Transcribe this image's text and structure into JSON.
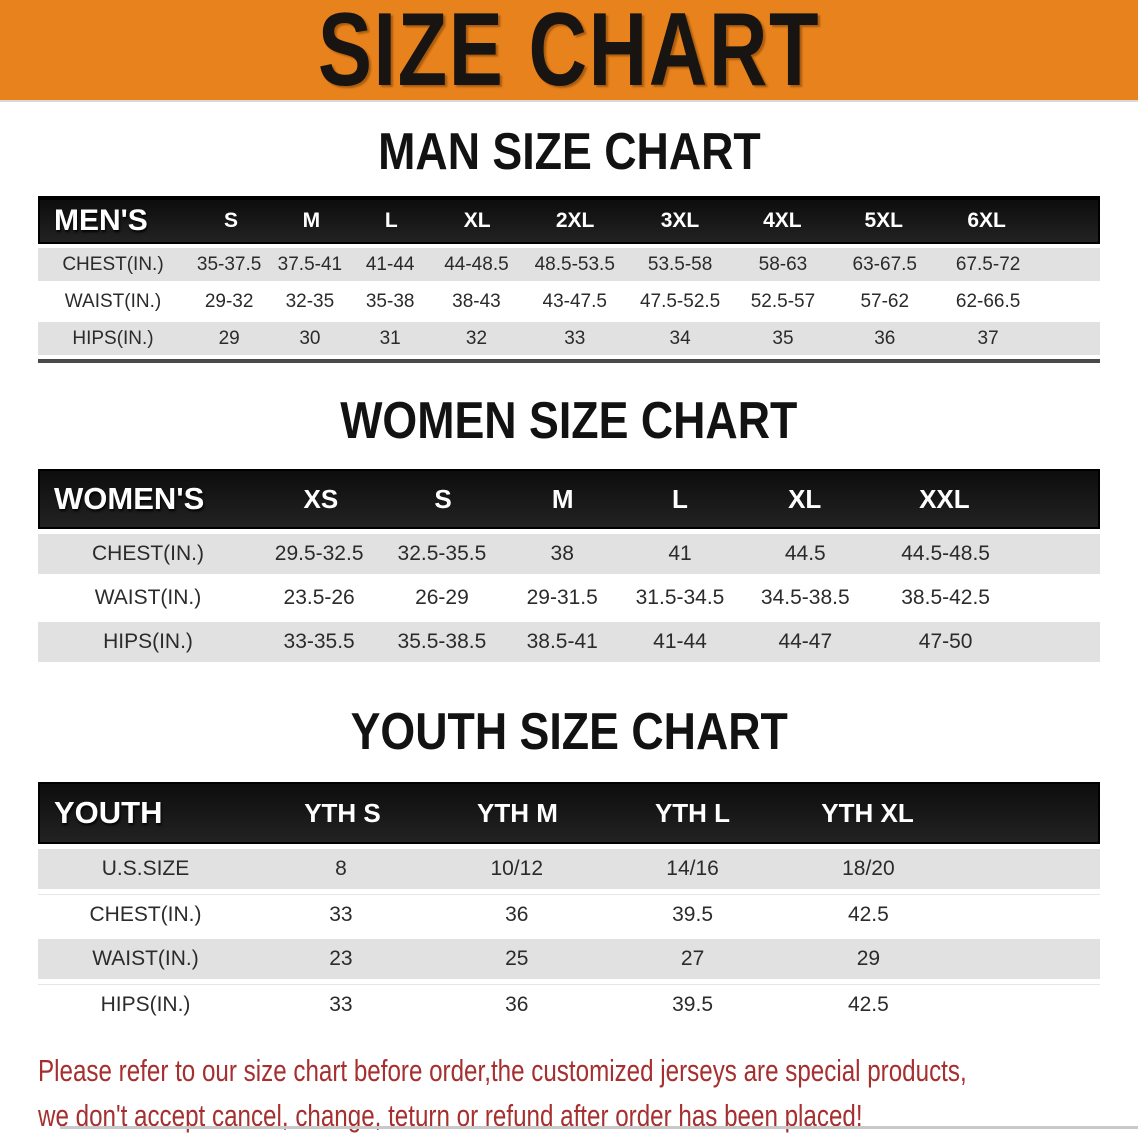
{
  "banner": {
    "title": "SIZE CHART"
  },
  "colors": {
    "banner_bg": "#e8821c",
    "banner_text": "#181411",
    "table_header_bg": "#141414",
    "table_header_text": "#ffffff",
    "row_shaded_bg": "#e1e1e1",
    "row_text": "#2b2b2b",
    "heading_text": "#121212",
    "footer_text": "#a62f2f"
  },
  "man_section": {
    "heading": "MAN SIZE CHART",
    "table": {
      "label": "MEN'S",
      "columns": [
        "S",
        "M",
        "L",
        "XL",
        "2XL",
        "3XL",
        "4XL",
        "5XL",
        "6XL"
      ],
      "rows": [
        {
          "label": "CHEST(IN.)",
          "values": [
            "35-37.5",
            "37.5-41",
            "41-44",
            "44-48.5",
            "48.5-53.5",
            "53.5-58",
            "58-63",
            "63-67.5",
            "67.5-72"
          ]
        },
        {
          "label": "WAIST(IN.)",
          "values": [
            "29-32",
            "32-35",
            "35-38",
            "38-43",
            "43-47.5",
            "47.5-52.5",
            "52.5-57",
            "57-62",
            "62-66.5"
          ]
        },
        {
          "label": "HIPS(IN.)",
          "values": [
            "29",
            "30",
            "31",
            "32",
            "33",
            "34",
            "35",
            "36",
            "37"
          ]
        }
      ]
    }
  },
  "women_section": {
    "heading": "WOMEN SIZE CHART",
    "table": {
      "label": "WOMEN'S",
      "columns": [
        "XS",
        "S",
        "M",
        "L",
        "XL",
        "XXL"
      ],
      "rows": [
        {
          "label": "CHEST(IN.)",
          "values": [
            "29.5-32.5",
            "32.5-35.5",
            "38",
            "41",
            "44.5",
            "44.5-48.5"
          ]
        },
        {
          "label": "WAIST(IN.)",
          "values": [
            "23.5-26",
            "26-29",
            "29-31.5",
            "31.5-34.5",
            "34.5-38.5",
            "38.5-42.5"
          ]
        },
        {
          "label": "HIPS(IN.)",
          "values": [
            "33-35.5",
            "35.5-38.5",
            "38.5-41",
            "41-44",
            "44-47",
            "47-50"
          ]
        }
      ]
    }
  },
  "youth_section": {
    "heading": "YOUTH SIZE CHART",
    "table": {
      "label": "YOUTH",
      "columns": [
        "YTH S",
        "YTH M",
        "YTH L",
        "YTH XL"
      ],
      "rows": [
        {
          "label": "U.S.SIZE",
          "values": [
            "8",
            "10/12",
            "14/16",
            "18/20"
          ]
        },
        {
          "label": "CHEST(IN.)",
          "values": [
            "33",
            "36",
            "39.5",
            "42.5"
          ]
        },
        {
          "label": "WAIST(IN.)",
          "values": [
            "23",
            "25",
            "27",
            "29"
          ]
        },
        {
          "label": "HIPS(IN.)",
          "values": [
            "33",
            "36",
            "39.5",
            "42.5"
          ]
        }
      ]
    }
  },
  "footer": {
    "line1": "Please refer to our size chart before order,the customized jerseys are special products,",
    "line2": "we don't accept cancel, change, teturn or refund after order has been placed!"
  }
}
